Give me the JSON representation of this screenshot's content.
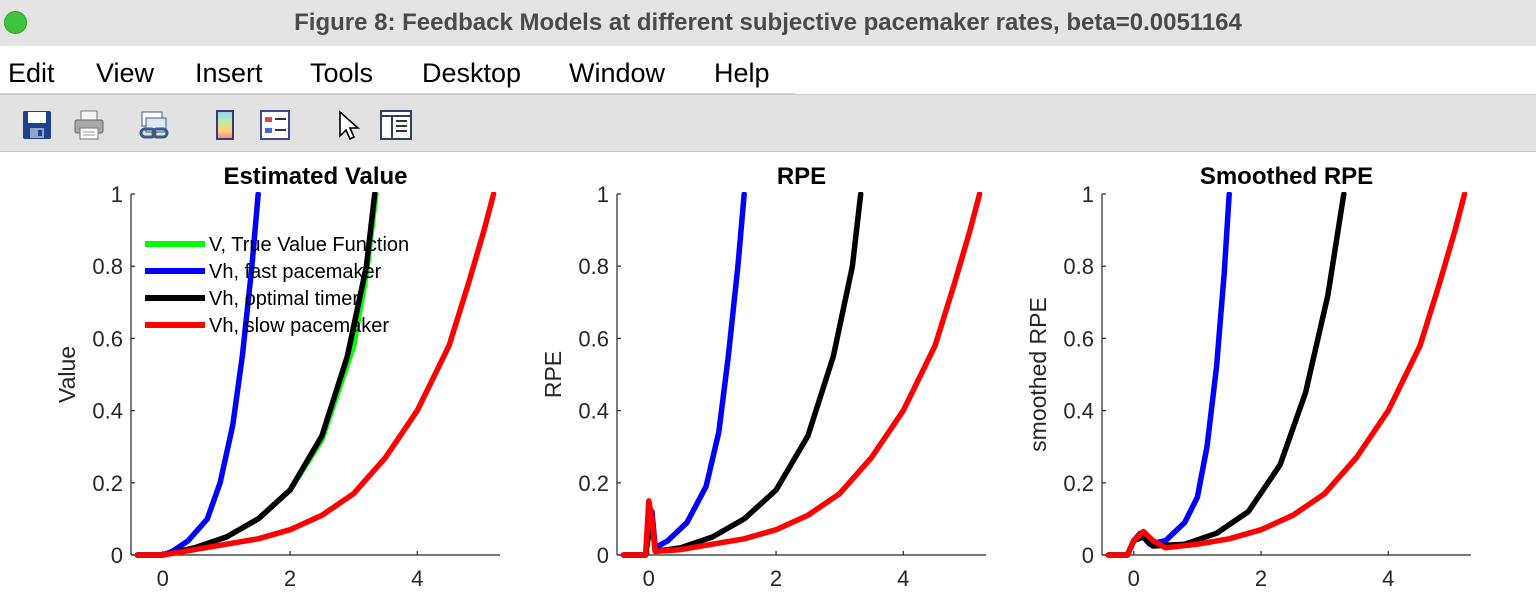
{
  "window": {
    "title": "Figure 8: Feedback Models at different subjective pacemaker rates, beta=0.0051164"
  },
  "menu": [
    "Edit",
    "View",
    "Insert",
    "Tools",
    "Desktop",
    "Window",
    "Help"
  ],
  "toolbar": {
    "icons": [
      "save-icon",
      "print-icon",
      "link-icon",
      "colorbar-icon",
      "legend-icon",
      "pointer-icon",
      "property-editor-icon"
    ]
  },
  "colors": {
    "green": "#00ff00",
    "blue": "#0000ff",
    "black": "#000000",
    "red": "#ff0000"
  },
  "chart_data": [
    {
      "type": "line",
      "title": "Estimated Value",
      "xlabel": "",
      "ylabel": "Value",
      "xlim": [
        -0.5,
        5.3
      ],
      "ylim": [
        0,
        1
      ],
      "xticks": [
        "0",
        "2",
        "4"
      ],
      "yticks": [
        "0",
        "0.2",
        "0.4",
        "0.6",
        "0.8",
        "1"
      ],
      "legend": {
        "position": "top-left"
      },
      "series": [
        {
          "name": "V, True Value Function",
          "color": "#00ff00",
          "points": [
            [
              -0.4,
              0
            ],
            [
              0,
              0
            ],
            [
              0.5,
              0.02
            ],
            [
              1,
              0.05
            ],
            [
              1.5,
              0.1
            ],
            [
              2,
              0.18
            ],
            [
              2.5,
              0.32
            ],
            [
              3,
              0.58
            ],
            [
              3.2,
              0.78
            ],
            [
              3.35,
              1.0
            ]
          ]
        },
        {
          "name": "Vh, fast pacemaker",
          "color": "#0000ff",
          "points": [
            [
              -0.4,
              0
            ],
            [
              0,
              0
            ],
            [
              0.15,
              0.01
            ],
            [
              0.4,
              0.04
            ],
            [
              0.7,
              0.1
            ],
            [
              0.9,
              0.2
            ],
            [
              1.1,
              0.36
            ],
            [
              1.25,
              0.55
            ],
            [
              1.4,
              0.8
            ],
            [
              1.5,
              1.0
            ]
          ]
        },
        {
          "name": "Vh, optimal timer",
          "color": "#000000",
          "points": [
            [
              -0.4,
              0
            ],
            [
              0,
              0
            ],
            [
              0.5,
              0.02
            ],
            [
              1,
              0.05
            ],
            [
              1.5,
              0.1
            ],
            [
              2,
              0.18
            ],
            [
              2.5,
              0.33
            ],
            [
              2.9,
              0.55
            ],
            [
              3.2,
              0.8
            ],
            [
              3.33,
              1.0
            ]
          ]
        },
        {
          "name": "Vh, slow pacemaker",
          "color": "#ff0000",
          "points": [
            [
              -0.4,
              0
            ],
            [
              0,
              0
            ],
            [
              0.5,
              0.015
            ],
            [
              1,
              0.03
            ],
            [
              1.5,
              0.045
            ],
            [
              2,
              0.07
            ],
            [
              2.5,
              0.11
            ],
            [
              3,
              0.17
            ],
            [
              3.5,
              0.27
            ],
            [
              4,
              0.4
            ],
            [
              4.5,
              0.58
            ],
            [
              4.8,
              0.75
            ],
            [
              5.05,
              0.9
            ],
            [
              5.2,
              1.0
            ]
          ]
        }
      ]
    },
    {
      "type": "line",
      "title": "RPE",
      "xlabel": "",
      "ylabel": "RPE",
      "xlim": [
        -0.5,
        5.3
      ],
      "ylim": [
        0,
        1
      ],
      "xticks": [
        "0",
        "2",
        "4"
      ],
      "yticks": [
        "0",
        "0.2",
        "0.4",
        "0.6",
        "0.8",
        "1"
      ],
      "series": [
        {
          "name": "",
          "color": "#0000ff",
          "points": [
            [
              -0.4,
              0
            ],
            [
              -0.05,
              0
            ],
            [
              0,
              0.08
            ],
            [
              0.05,
              0.12
            ],
            [
              0.1,
              0.02
            ],
            [
              0.3,
              0.04
            ],
            [
              0.6,
              0.09
            ],
            [
              0.9,
              0.19
            ],
            [
              1.1,
              0.34
            ],
            [
              1.25,
              0.55
            ],
            [
              1.4,
              0.8
            ],
            [
              1.5,
              1.0
            ]
          ]
        },
        {
          "name": "",
          "color": "#000000",
          "points": [
            [
              -0.4,
              0
            ],
            [
              -0.05,
              0
            ],
            [
              0,
              0.06
            ],
            [
              0.05,
              0.1
            ],
            [
              0.1,
              0.01
            ],
            [
              0.5,
              0.02
            ],
            [
              1,
              0.05
            ],
            [
              1.5,
              0.1
            ],
            [
              2,
              0.18
            ],
            [
              2.5,
              0.33
            ],
            [
              2.9,
              0.55
            ],
            [
              3.2,
              0.8
            ],
            [
              3.33,
              1.0
            ]
          ]
        },
        {
          "name": "",
          "color": "#ff0000",
          "points": [
            [
              -0.4,
              0
            ],
            [
              -0.05,
              0
            ],
            [
              0,
              0.15
            ],
            [
              0.05,
              0.1
            ],
            [
              0.1,
              0.01
            ],
            [
              0.5,
              0.015
            ],
            [
              1,
              0.03
            ],
            [
              1.5,
              0.045
            ],
            [
              2,
              0.07
            ],
            [
              2.5,
              0.11
            ],
            [
              3,
              0.17
            ],
            [
              3.5,
              0.27
            ],
            [
              4,
              0.4
            ],
            [
              4.5,
              0.58
            ],
            [
              4.8,
              0.75
            ],
            [
              5.05,
              0.9
            ],
            [
              5.2,
              1.0
            ]
          ]
        }
      ]
    },
    {
      "type": "line",
      "title": "Smoothed RPE",
      "xlabel": "",
      "ylabel": "smoothed RPE",
      "xlim": [
        -0.5,
        5.3
      ],
      "ylim": [
        0,
        1
      ],
      "xticks": [
        "0",
        "2",
        "4"
      ],
      "yticks": [
        "0",
        "0.2",
        "0.4",
        "0.6",
        "0.8",
        "1"
      ],
      "series": [
        {
          "name": "",
          "color": "#0000ff",
          "points": [
            [
              -0.4,
              0
            ],
            [
              -0.1,
              0
            ],
            [
              0,
              0.04
            ],
            [
              0.1,
              0.06
            ],
            [
              0.25,
              0.03
            ],
            [
              0.5,
              0.04
            ],
            [
              0.8,
              0.09
            ],
            [
              1,
              0.16
            ],
            [
              1.15,
              0.3
            ],
            [
              1.3,
              0.52
            ],
            [
              1.42,
              0.78
            ],
            [
              1.5,
              1.0
            ]
          ]
        },
        {
          "name": "",
          "color": "#000000",
          "points": [
            [
              -0.4,
              0
            ],
            [
              -0.1,
              0
            ],
            [
              0,
              0.04
            ],
            [
              0.15,
              0.05
            ],
            [
              0.3,
              0.025
            ],
            [
              0.8,
              0.03
            ],
            [
              1.3,
              0.06
            ],
            [
              1.8,
              0.12
            ],
            [
              2.3,
              0.25
            ],
            [
              2.7,
              0.45
            ],
            [
              3.05,
              0.72
            ],
            [
              3.3,
              1.0
            ]
          ]
        },
        {
          "name": "",
          "color": "#ff0000",
          "points": [
            [
              -0.4,
              0
            ],
            [
              -0.1,
              0
            ],
            [
              0,
              0.04
            ],
            [
              0.15,
              0.065
            ],
            [
              0.3,
              0.04
            ],
            [
              0.5,
              0.02
            ],
            [
              1,
              0.03
            ],
            [
              1.5,
              0.045
            ],
            [
              2,
              0.07
            ],
            [
              2.5,
              0.11
            ],
            [
              3,
              0.17
            ],
            [
              3.5,
              0.27
            ],
            [
              4,
              0.4
            ],
            [
              4.5,
              0.58
            ],
            [
              4.8,
              0.75
            ],
            [
              5.05,
              0.9
            ],
            [
              5.2,
              1.0
            ]
          ]
        }
      ]
    }
  ]
}
